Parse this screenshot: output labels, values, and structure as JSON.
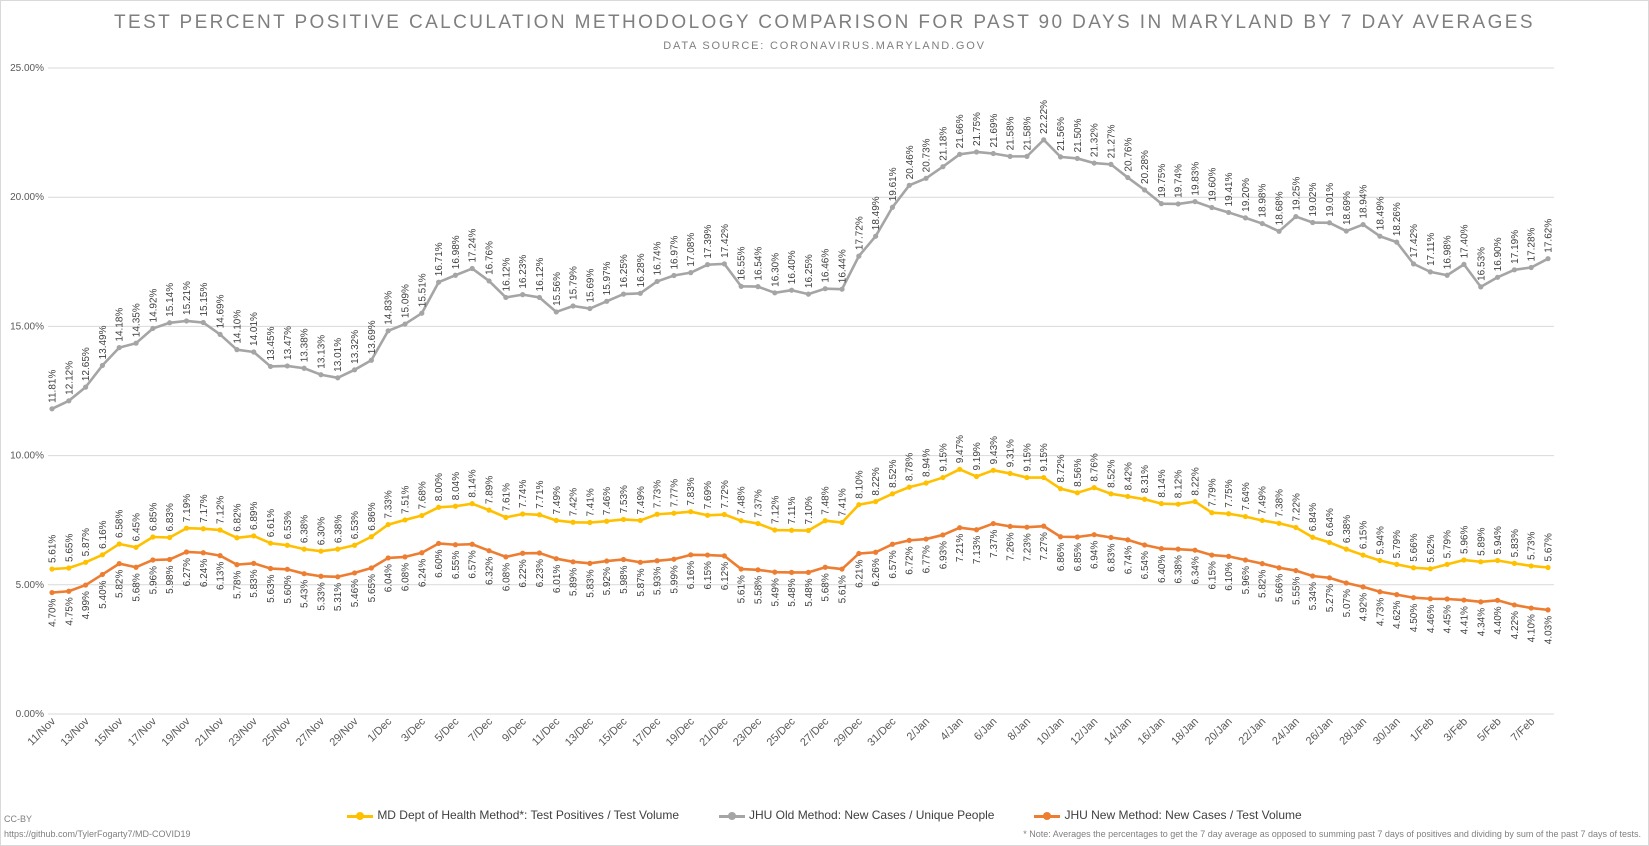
{
  "chart_data": {
    "type": "line",
    "title": "TEST PERCENT POSITIVE CALCULATION METHODOLOGY COMPARISON FOR PAST 90 DAYS IN MARYLAND BY 7 DAY AVERAGES",
    "subtitle": "DATA SOURCE: CORONAVIRUS.MARYLAND.GOV",
    "ylim": [
      0,
      25
    ],
    "yticks": [
      "0.00%",
      "5.00%",
      "10.00%",
      "15.00%",
      "20.00%",
      "25.00%"
    ],
    "grid": true,
    "legend_position": "bottom",
    "x_tick_labels": [
      "11/Nov",
      "13/Nov",
      "15/Nov",
      "17/Nov",
      "19/Nov",
      "21/Nov",
      "23/Nov",
      "25/Nov",
      "27/Nov",
      "29/Nov",
      "1/Dec",
      "3/Dec",
      "5/Dec",
      "7/Dec",
      "9/Dec",
      "11/Dec",
      "13/Dec",
      "15/Dec",
      "17/Dec",
      "19/Dec",
      "21/Dec",
      "23/Dec",
      "25/Dec",
      "27/Dec",
      "29/Dec",
      "31/Dec",
      "2/Jan",
      "4/Jan",
      "6/Jan",
      "8/Jan",
      "10/Jan",
      "12/Jan",
      "14/Jan",
      "16/Jan",
      "18/Jan",
      "20/Jan",
      "22/Jan",
      "24/Jan",
      "26/Jan",
      "28/Jan",
      "30/Jan",
      "1/Feb",
      "3/Feb",
      "5/Feb",
      "7/Feb"
    ],
    "series": [
      {
        "name": "MD Dept of Health Method*: Test Positives / Test Volume",
        "color": "#ffc000",
        "label_position": "above",
        "values": [
          5.61,
          5.65,
          5.87,
          6.16,
          6.58,
          6.45,
          6.85,
          6.83,
          7.19,
          7.17,
          7.12,
          6.82,
          6.89,
          6.61,
          6.53,
          6.38,
          6.3,
          6.38,
          6.53,
          6.86,
          7.33,
          7.51,
          7.68,
          8.0,
          8.04,
          8.14,
          7.89,
          7.61,
          7.74,
          7.71,
          7.49,
          7.42,
          7.41,
          7.46,
          7.53,
          7.49,
          7.73,
          7.77,
          7.83,
          7.69,
          7.72,
          7.48,
          7.37,
          7.12,
          7.11,
          7.1,
          7.48,
          7.41,
          8.1,
          8.22,
          8.52,
          8.78,
          8.94,
          9.15,
          9.47,
          9.19,
          9.43,
          9.31,
          9.15,
          9.15,
          8.72,
          8.56,
          8.76,
          8.52,
          8.42,
          8.31,
          8.14,
          8.12,
          8.22,
          7.79,
          7.75,
          7.64,
          7.49,
          7.38,
          7.22,
          6.84,
          6.64,
          6.38,
          6.15,
          5.94,
          5.79,
          5.66,
          5.62,
          5.79,
          5.96,
          5.89,
          5.94,
          5.83,
          5.73,
          5.67
        ]
      },
      {
        "name": "JHU Old Method: New Cases / Unique People",
        "color": "#a5a5a5",
        "label_position": "above",
        "values": [
          11.81,
          12.12,
          12.65,
          13.49,
          14.18,
          14.35,
          14.92,
          15.14,
          15.21,
          15.15,
          14.69,
          14.1,
          14.01,
          13.45,
          13.47,
          13.38,
          13.13,
          13.01,
          13.32,
          13.69,
          14.83,
          15.09,
          15.51,
          16.71,
          16.98,
          17.24,
          16.76,
          16.12,
          16.23,
          16.12,
          15.56,
          15.79,
          15.69,
          15.97,
          16.25,
          16.28,
          16.74,
          16.97,
          17.08,
          17.39,
          17.42,
          16.55,
          16.54,
          16.3,
          16.4,
          16.25,
          16.46,
          16.44,
          17.72,
          18.49,
          19.61,
          20.46,
          20.73,
          21.18,
          21.66,
          21.75,
          21.69,
          21.58,
          21.58,
          22.22,
          21.56,
          21.5,
          21.32,
          21.27,
          20.76,
          20.28,
          19.75,
          19.74,
          19.83,
          19.6,
          19.41,
          19.2,
          18.98,
          18.68,
          19.25,
          19.02,
          19.01,
          18.69,
          18.94,
          18.49,
          18.26,
          17.42,
          17.11,
          16.98,
          17.4,
          16.53,
          16.9,
          17.19,
          17.28,
          17.62
        ]
      },
      {
        "name": "JHU New Method: New Cases / Test Volume",
        "color": "#ed7d31",
        "label_position": "below",
        "values": [
          4.7,
          4.75,
          4.99,
          5.4,
          5.82,
          5.68,
          5.96,
          5.98,
          6.27,
          6.24,
          6.13,
          5.78,
          5.83,
          5.63,
          5.6,
          5.43,
          5.33,
          5.31,
          5.46,
          5.65,
          6.04,
          6.08,
          6.24,
          6.6,
          6.55,
          6.57,
          6.32,
          6.08,
          6.22,
          6.23,
          6.01,
          5.89,
          5.83,
          5.92,
          5.98,
          5.87,
          5.93,
          5.99,
          6.16,
          6.15,
          6.12,
          5.61,
          5.58,
          5.49,
          5.48,
          5.48,
          5.68,
          5.61,
          6.21,
          6.26,
          6.57,
          6.72,
          6.77,
          6.93,
          7.21,
          7.13,
          7.37,
          7.26,
          7.23,
          7.27,
          6.86,
          6.85,
          6.94,
          6.83,
          6.74,
          6.54,
          6.4,
          6.38,
          6.34,
          6.15,
          6.1,
          5.96,
          5.82,
          5.66,
          5.55,
          5.34,
          5.27,
          5.07,
          4.92,
          4.73,
          4.62,
          4.5,
          4.46,
          4.45,
          4.41,
          4.34,
          4.4,
          4.22,
          4.1,
          4.03
        ]
      }
    ]
  },
  "footer": {
    "license": "CC-BY",
    "source_link": "https://github.com/TylerFogarty7/MD-COVID19",
    "note": "* Note: Averages the percentages to get the 7 day average as opposed to summing past 7 days of positives and dividing by sum of the past 7 days of tests."
  }
}
